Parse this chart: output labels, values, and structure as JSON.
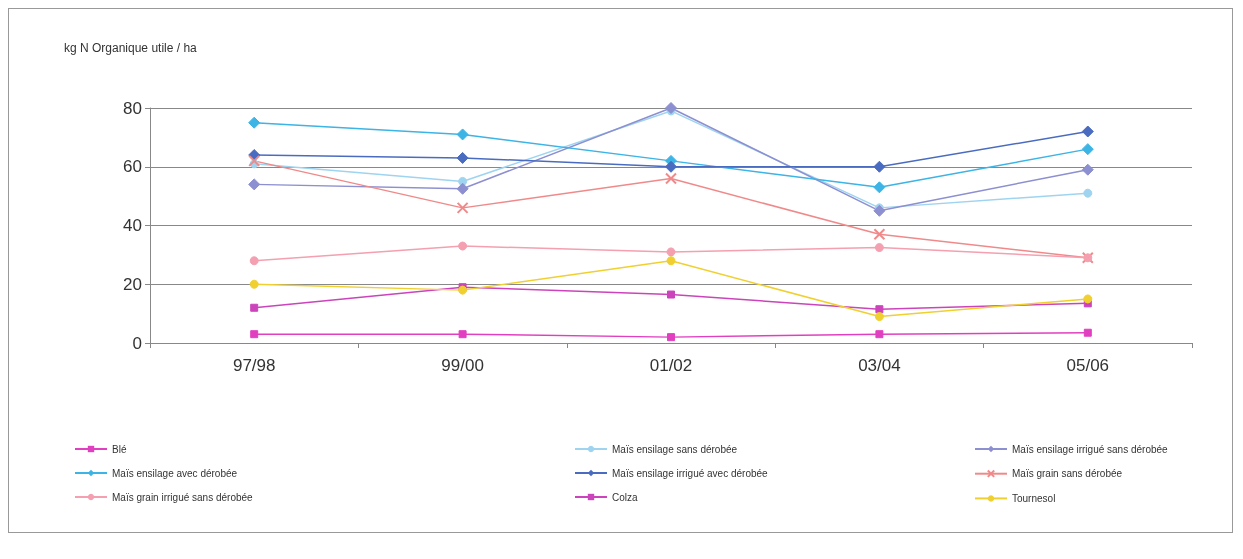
{
  "chart_data": {
    "type": "line",
    "ylabel": "kg N Organique utile / ha",
    "categories": [
      "97/98",
      "99/00",
      "01/02",
      "03/04",
      "05/06"
    ],
    "ylim": [
      0,
      80
    ],
    "yticks": [
      0,
      20,
      40,
      60,
      80
    ],
    "grid": "y",
    "legend": "bottom",
    "series": [
      {
        "name": "Blé",
        "color": "#e040c0",
        "marker": "square",
        "values": [
          3,
          3,
          2,
          3,
          3.5
        ]
      },
      {
        "name": "Maïs ensilage sans dérobée",
        "color": "#9fd4f0",
        "marker": "circle",
        "values": [
          61,
          55,
          79,
          46,
          51
        ]
      },
      {
        "name": "Maïs ensilage irrigué sans dérobée",
        "color": "#8c8fd0",
        "marker": "diamond",
        "values": [
          54,
          52.5,
          80,
          45,
          59
        ]
      },
      {
        "name": "Maïs ensilage avec dérobée",
        "color": "#3cb4e6",
        "marker": "diamond",
        "values": [
          75,
          71,
          62,
          53,
          66
        ]
      },
      {
        "name": "Maïs ensilage irrigué avec dérobée",
        "color": "#4a6cc0",
        "marker": "diamond",
        "values": [
          64,
          63,
          60,
          60,
          72
        ]
      },
      {
        "name": "Maïs grain sans dérobée",
        "color": "#f08a8a",
        "marker": "cross",
        "values": [
          62,
          46,
          56,
          37,
          29
        ]
      },
      {
        "name": "Maïs grain irrigué sans dérobée",
        "color": "#f4a0b0",
        "marker": "circle",
        "values": [
          28,
          33,
          31,
          32.5,
          29
        ]
      },
      {
        "name": "Colza",
        "color": "#cc44bb",
        "marker": "square",
        "values": [
          12,
          19,
          16.5,
          11.5,
          13.5
        ]
      },
      {
        "name": "Tournesol",
        "color": "#f0d030",
        "marker": "circle",
        "values": [
          20,
          18,
          28,
          9,
          15
        ]
      }
    ]
  }
}
